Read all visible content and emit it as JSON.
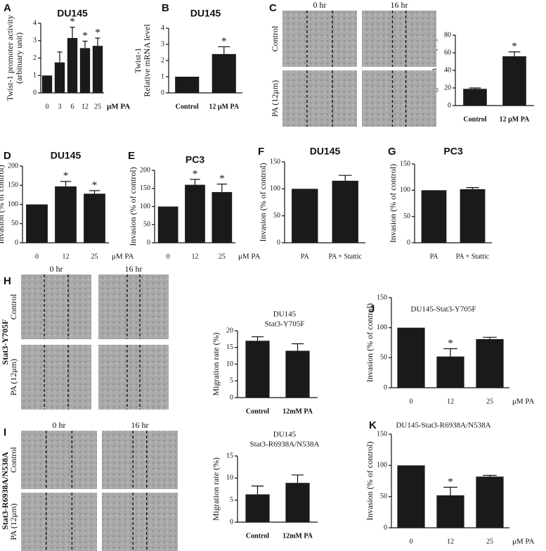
{
  "chart_data": [
    {
      "type": "bar",
      "panel": "A",
      "title": "DU145",
      "ylabel": [
        "Twist-1 promoter  activity",
        "(arbituary unit)"
      ],
      "xlabel": "μM PA",
      "categories": [
        "0",
        "3",
        "6",
        "12",
        "25"
      ],
      "values": [
        1,
        1.75,
        3.15,
        2.57,
        2.7
      ],
      "errors": [
        null,
        0.6,
        0.62,
        0.4,
        0.45
      ],
      "significance": [
        null,
        null,
        "*",
        "*",
        "*"
      ],
      "color": "#1a1a1a",
      "ylim": [
        0,
        4
      ],
      "yticks": [
        0,
        1,
        2,
        3,
        4
      ]
    },
    {
      "type": "bar",
      "panel": "B",
      "title": "DU145",
      "ylabel": [
        "Twist-1",
        "Relative mRNA level"
      ],
      "categories": [
        "Control",
        "12 μM PA"
      ],
      "values": [
        1,
        2.4
      ],
      "errors": [
        null,
        0.45
      ],
      "significance": [
        null,
        "*"
      ],
      "color": "#1a1a1a",
      "ylim": [
        0,
        4
      ],
      "yticks": [
        0,
        1,
        2,
        3,
        4
      ]
    },
    {
      "type": "bar",
      "ylabel": [
        "Migration rate (%)"
      ],
      "categories": [
        "Control",
        "12 μM PA"
      ],
      "values": [
        19,
        56
      ],
      "errors": [
        1,
        5
      ],
      "significance": [
        null,
        "*"
      ],
      "color": "#1a1a1a",
      "ylim": [
        0,
        80
      ],
      "yticks": [
        0,
        20,
        40,
        60,
        80
      ]
    },
    {
      "type": "bar",
      "panel": "D",
      "title": "DU145",
      "ylabel": [
        "Invasion (% of control)"
      ],
      "xlabel": "μM  PA",
      "categories": [
        "0",
        "12",
        "25"
      ],
      "values": [
        100,
        147,
        128
      ],
      "errors": [
        null,
        13,
        8
      ],
      "significance": [
        null,
        "*",
        "*"
      ],
      "color": "#1a1a1a",
      "ylim": [
        0,
        200
      ],
      "yticks": [
        0,
        50,
        100,
        150,
        200
      ]
    },
    {
      "type": "bar",
      "panel": "E",
      "title": "PC3",
      "ylabel": [
        "Invasion (% of control)"
      ],
      "xlabel": "μM  PA",
      "categories": [
        "0",
        "12",
        "25"
      ],
      "values": [
        100,
        160,
        140
      ],
      "errors": [
        null,
        15,
        22
      ],
      "significance": [
        null,
        "*",
        "*"
      ],
      "color": "#1a1a1a",
      "ylim": [
        0,
        200
      ],
      "yticks": [
        0,
        50,
        100,
        150,
        200
      ]
    },
    {
      "type": "bar",
      "panel": "F",
      "title": "DU145",
      "ylabel": [
        "Invasion (% of control)"
      ],
      "categories": [
        "PA",
        "PA + Stattic"
      ],
      "values": [
        100,
        115
      ],
      "errors": [
        null,
        10
      ],
      "color": "#1a1a1a",
      "ylim": [
        0,
        150
      ],
      "yticks": [
        0,
        50,
        100,
        150
      ]
    },
    {
      "type": "bar",
      "panel": "G",
      "title": "PC3",
      "ylabel": [
        "Invasion (% of control)"
      ],
      "categories": [
        "PA",
        "PA + Stattic"
      ],
      "values": [
        100,
        102
      ],
      "errors": [
        null,
        3
      ],
      "color": "#1a1a1a",
      "ylim": [
        0,
        150
      ],
      "yticks": [
        0,
        50,
        100,
        150
      ]
    },
    {
      "type": "bar",
      "title": [
        "DU145",
        "Stat3-Y705F"
      ],
      "ylabel": [
        "Migration rate (%)"
      ],
      "categories": [
        "Control",
        "12mM PA"
      ],
      "values": [
        17,
        14
      ],
      "errors": [
        1.2,
        2.1
      ],
      "color": "#1a1a1a",
      "ylim": [
        0,
        20
      ],
      "yticks": [
        0,
        5,
        10,
        15,
        20
      ]
    },
    {
      "type": "bar",
      "title": [
        "DU145",
        "Stat3-R6938A/N538A"
      ],
      "ylabel": [
        "Migration rate (%)"
      ],
      "categories": [
        "Control",
        "12mM PA"
      ],
      "values": [
        6.3,
        8.9
      ],
      "errors": [
        1.9,
        1.8
      ],
      "color": "#1a1a1a",
      "ylim": [
        0,
        15
      ],
      "yticks": [
        0,
        5,
        10,
        15
      ]
    },
    {
      "type": "bar",
      "panel": "J",
      "title": "DU145-Stat3-Y705F",
      "ylabel": [
        "Invasion (% of control)"
      ],
      "xlabel": "μM PA",
      "categories": [
        "0",
        "12",
        "25"
      ],
      "values": [
        100,
        52,
        81
      ],
      "errors": [
        null,
        13,
        3
      ],
      "significance": [
        null,
        "*",
        null
      ],
      "color": "#1a1a1a",
      "ylim": [
        0,
        150
      ],
      "yticks": [
        0,
        50,
        100,
        150
      ]
    },
    {
      "type": "bar",
      "panel": "K",
      "title": "DU145-Stat3-R6938A/N538A",
      "ylabel": [
        "Invasion (% of control)"
      ],
      "xlabel": "μM PA",
      "categories": [
        "0",
        "12",
        "25"
      ],
      "values": [
        100,
        52,
        82
      ],
      "errors": [
        null,
        13,
        2
      ],
      "significance": [
        null,
        "*",
        null
      ],
      "color": "#1a1a1a",
      "ylim": [
        0,
        150
      ],
      "yticks": [
        0,
        50,
        100,
        150
      ]
    }
  ],
  "micrographs": [
    {
      "panel": "C",
      "columns": [
        "0 hr",
        "16 hr"
      ],
      "rows": [
        "Control",
        "PA (12μm)"
      ]
    },
    {
      "panel": "H",
      "group": "Stat3-Y705F",
      "columns": [
        "0 hr",
        "16 hr"
      ],
      "rows": [
        "Control",
        "PA (12μm)"
      ]
    },
    {
      "panel": "I",
      "group": "Stat3-R6938A/N538A",
      "columns": [
        "0 hr",
        "16 hr"
      ],
      "rows": [
        "Control",
        "PA (12μm)"
      ]
    }
  ]
}
